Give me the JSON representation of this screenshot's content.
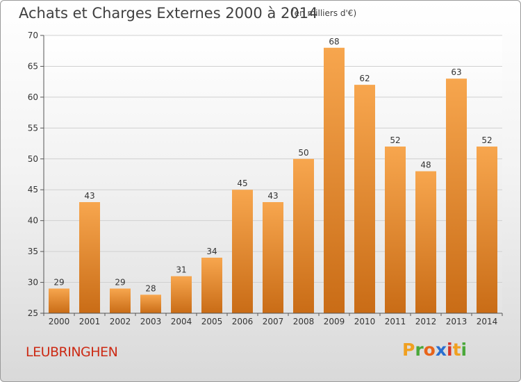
{
  "header": {
    "title": "Achats et Charges Externes 2000 à 2014",
    "subtitle": "(en milliers d'€)"
  },
  "footer": {
    "commune": "LEUBRINGHEN",
    "logo_letters": [
      "P",
      "r",
      "o",
      "x",
      "i",
      "t",
      "i"
    ],
    "logo_colors": [
      "#f0a020",
      "#4aa83a",
      "#e8641a",
      "#2a6fd0",
      "#d8352a",
      "#f0a020",
      "#4aa83a"
    ]
  },
  "chart_data": {
    "type": "bar",
    "title": "Achats et Charges Externes 2000 à 2014",
    "subtitle": "(en milliers d'€)",
    "categories": [
      "2000",
      "2001",
      "2002",
      "2003",
      "2004",
      "2005",
      "2006",
      "2007",
      "2008",
      "2009",
      "2010",
      "2011",
      "2012",
      "2013",
      "2014"
    ],
    "values": [
      29,
      43,
      29,
      28,
      31,
      34,
      45,
      43,
      50,
      68,
      62,
      52,
      48,
      63,
      52
    ],
    "value_labels": [
      "29",
      "43",
      "29",
      "28",
      "31",
      "34",
      "45",
      "43",
      "50",
      "68",
      "62",
      "52",
      "48",
      "63",
      "52"
    ],
    "ylim": [
      25,
      70
    ],
    "yticks": [
      25,
      30,
      35,
      40,
      45,
      50,
      55,
      60,
      65,
      70
    ],
    "grid": true,
    "bar_color_top": "#f7a64e",
    "bar_color_bottom": "#c96c16",
    "xlabel": "",
    "ylabel": ""
  }
}
